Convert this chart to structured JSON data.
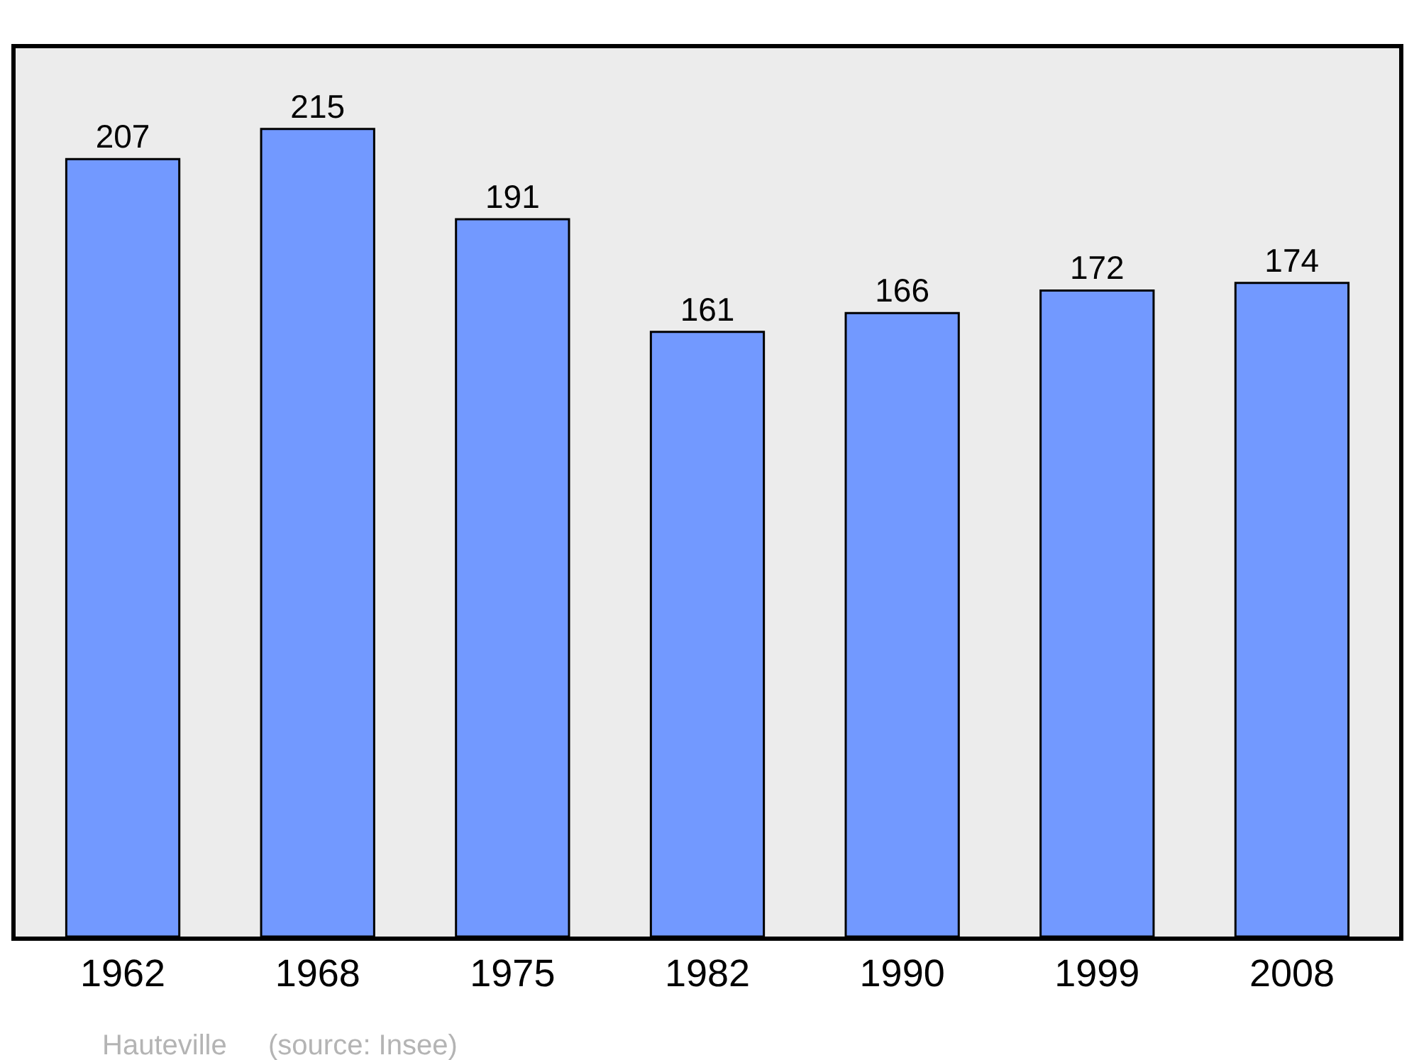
{
  "chart_data": {
    "type": "bar",
    "categories": [
      "1962",
      "1968",
      "1975",
      "1982",
      "1990",
      "1999",
      "2008"
    ],
    "values": [
      207,
      215,
      191,
      161,
      166,
      172,
      174
    ],
    "color": "#7299ff",
    "data_labels": true,
    "grid": false,
    "legend": false,
    "annotations": [
      "Hauteville",
      "(source: Insee)"
    ]
  }
}
